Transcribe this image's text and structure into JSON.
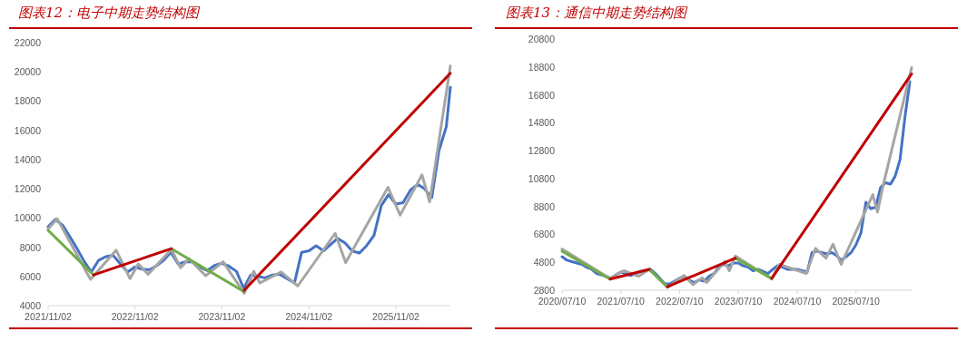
{
  "chart_data": [
    {
      "type": "line",
      "title": "图表12：电子中期走势结构图",
      "xlim": [
        "2021-11-02",
        "2026-06-19"
      ],
      "ylim": [
        4000,
        22000
      ],
      "xticks": [
        {
          "value": "2021-11-02",
          "label": "2021/11/02"
        },
        {
          "value": "2022-11-02",
          "label": "2022/11/02"
        },
        {
          "value": "2023-11-02",
          "label": "2023/11/02"
        },
        {
          "value": "2024-11-02",
          "label": "2024/11/02"
        },
        {
          "value": "2025-11-02",
          "label": "2025/11/02"
        }
      ],
      "yticks": [
        4000,
        6000,
        8000,
        10000,
        12000,
        14000,
        16000,
        18000,
        20000,
        22000
      ],
      "series": [
        {
          "color": "#4472c4",
          "x": [
            "2021-11-02",
            "2021-12-02",
            "2022-01-02",
            "2022-02-02",
            "2022-03-02",
            "2022-04-02",
            "2022-05-02",
            "2022-06-02",
            "2022-07-02",
            "2022-08-02",
            "2022-09-02",
            "2022-10-02",
            "2022-11-02",
            "2022-12-02",
            "2023-01-02",
            "2023-02-02",
            "2023-03-02",
            "2023-04-02",
            "2023-05-02",
            "2023-06-02",
            "2023-07-02",
            "2023-08-02",
            "2023-09-02",
            "2023-10-02",
            "2023-11-02",
            "2023-12-02",
            "2024-01-02",
            "2024-02-02",
            "2024-03-02",
            "2024-04-02",
            "2024-05-02",
            "2024-06-02",
            "2024-07-02",
            "2024-08-02",
            "2024-09-02",
            "2024-10-02",
            "2024-11-02",
            "2024-12-02",
            "2025-01-02",
            "2025-02-02",
            "2025-03-02",
            "2025-04-02",
            "2025-05-02",
            "2025-06-02",
            "2025-07-02",
            "2025-08-02",
            "2025-09-02",
            "2025-10-02",
            "2025-11-02",
            "2025-12-02",
            "2026-01-02",
            "2026-02-02",
            "2026-03-02",
            "2026-04-02",
            "2026-05-02",
            "2026-06-02",
            "2026-06-19"
          ],
          "values": [
            9400,
            9900,
            9500,
            8700,
            7950,
            7050,
            6300,
            7100,
            7350,
            7450,
            6850,
            6300,
            6650,
            6500,
            6450,
            6750,
            7100,
            7650,
            6850,
            7000,
            7000,
            6650,
            6400,
            6750,
            6900,
            6700,
            6350,
            5180,
            6100,
            6000,
            5900,
            6100,
            6150,
            5850,
            5550,
            7650,
            7750,
            8100,
            7750,
            8200,
            8600,
            8300,
            7750,
            7600,
            8100,
            8800,
            10850,
            11600,
            10950,
            11050,
            11900,
            12300,
            12000,
            11400,
            14600,
            16250,
            18950
          ]
        },
        {
          "color": "#a5a5a5",
          "x": [
            "2021-11-02",
            "2021-12-10",
            "2022-04-29",
            "2022-08-15",
            "2022-10-12",
            "2022-11-16",
            "2022-12-27",
            "2023-04-04",
            "2023-05-12",
            "2023-06-17",
            "2023-08-26",
            "2023-11-07",
            "2024-02-04",
            "2024-03-15",
            "2024-04-10",
            "2024-07-08",
            "2024-09-16",
            "2025-02-20",
            "2025-04-05",
            "2025-09-30",
            "2025-11-20",
            "2026-02-20",
            "2026-03-24",
            "2026-06-19"
          ],
          "values": [
            9250,
            9950,
            5800,
            7800,
            5850,
            6850,
            6150,
            7850,
            6600,
            7200,
            6050,
            7000,
            4850,
            6350,
            5550,
            6300,
            5350,
            8950,
            6950,
            12100,
            10200,
            12950,
            11100,
            20400
          ]
        },
        {
          "color": "#70ad47",
          "x": [
            "2021-11-02",
            "2022-05-12"
          ],
          "values": [
            9150,
            6100
          ]
        },
        {
          "color": "#70ad47",
          "x": [
            "2023-04-04",
            "2024-02-04"
          ],
          "values": [
            7900,
            4950
          ]
        },
        {
          "color": "#c00000",
          "x": [
            "2022-05-12",
            "2023-04-04"
          ],
          "values": [
            6100,
            7900
          ]
        },
        {
          "color": "#c00000",
          "x": [
            "2024-02-04",
            "2026-06-19"
          ],
          "values": [
            5050,
            19900
          ]
        }
      ]
    },
    {
      "type": "line",
      "title": "图表13：通信中期走势结构图",
      "xlim": [
        "2020-07-10",
        "2026-06-21"
      ],
      "ylim": [
        2800,
        20800
      ],
      "xticks": [
        {
          "value": "2020-07-10",
          "label": "2020/07/10"
        },
        {
          "value": "2021-07-10",
          "label": "2021/07/10"
        },
        {
          "value": "2022-07-10",
          "label": "2022/07/10"
        },
        {
          "value": "2023-07-10",
          "label": "2023/07/10"
        },
        {
          "value": "2024-07-10",
          "label": "2024/07/10"
        },
        {
          "value": "2025-07-10",
          "label": "2025/07/10"
        }
      ],
      "yticks": [
        2800,
        4800,
        6800,
        8800,
        10800,
        12800,
        14800,
        16800,
        18800,
        20800
      ],
      "series": [
        {
          "color": "#4472c4",
          "x": [
            "2020-07-10",
            "2020-08-10",
            "2020-09-10",
            "2020-10-10",
            "2020-11-10",
            "2020-12-10",
            "2021-01-10",
            "2021-02-10",
            "2021-03-10",
            "2021-04-10",
            "2021-05-10",
            "2021-06-10",
            "2021-07-10",
            "2021-08-10",
            "2021-09-10",
            "2021-10-10",
            "2021-11-10",
            "2021-12-10",
            "2022-01-10",
            "2022-02-10",
            "2022-03-10",
            "2022-04-10",
            "2022-05-10",
            "2022-06-10",
            "2022-07-10",
            "2022-08-10",
            "2022-09-10",
            "2022-10-10",
            "2022-11-10",
            "2022-12-10",
            "2023-01-10",
            "2023-02-10",
            "2023-03-10",
            "2023-04-10",
            "2023-05-10",
            "2023-06-10",
            "2023-07-10",
            "2023-08-10",
            "2023-09-10",
            "2023-10-10",
            "2023-11-10",
            "2023-12-10",
            "2024-01-10",
            "2024-02-10",
            "2024-03-10",
            "2024-04-10",
            "2024-05-10",
            "2024-06-10",
            "2024-07-10",
            "2024-08-10",
            "2024-09-10",
            "2024-10-10",
            "2024-11-10",
            "2024-12-10",
            "2025-01-10",
            "2025-02-10",
            "2025-03-10",
            "2025-04-10",
            "2025-05-10",
            "2025-06-10",
            "2025-07-10",
            "2025-08-10",
            "2025-09-10",
            "2025-10-10",
            "2025-11-10",
            "2025-12-10",
            "2026-01-10",
            "2026-02-10",
            "2026-03-10",
            "2026-04-10",
            "2026-05-10",
            "2026-06-10"
          ],
          "values": [
            5200,
            4950,
            4850,
            4750,
            4650,
            4450,
            4300,
            4000,
            3900,
            3800,
            3650,
            3900,
            4100,
            4000,
            3850,
            4000,
            4150,
            4200,
            4300,
            4000,
            3650,
            3250,
            3250,
            3450,
            3650,
            3800,
            3500,
            3350,
            3550,
            3450,
            3800,
            4000,
            4450,
            4650,
            4550,
            4750,
            4750,
            4550,
            4450,
            4200,
            4300,
            4150,
            4000,
            4300,
            4550,
            4450,
            4300,
            4300,
            4300,
            4200,
            4100,
            5500,
            5600,
            5500,
            5400,
            5500,
            5300,
            4950,
            5200,
            5500,
            6050,
            6900,
            9100,
            8650,
            8750,
            10150,
            10500,
            10400,
            10950,
            12150,
            15150,
            17750
          ]
        },
        {
          "color": "#a5a5a5",
          "x": [
            "2020-07-10",
            "2021-05-04",
            "2021-07-28",
            "2021-10-30",
            "2022-01-03",
            "2022-04-26",
            "2022-08-07",
            "2022-10-02",
            "2022-11-28",
            "2022-12-26",
            "2023-04-17",
            "2023-05-16",
            "2023-06-22",
            "2024-02-03",
            "2024-03-21",
            "2024-09-05",
            "2024-11-01",
            "2025-01-05",
            "2025-02-18",
            "2025-04-09",
            "2025-10-23",
            "2025-11-21",
            "2025-12-28",
            "2026-06-21"
          ],
          "values": [
            5750,
            3650,
            4200,
            3800,
            4300,
            3000,
            3850,
            3200,
            3700,
            3350,
            4850,
            4200,
            5250,
            3600,
            4650,
            4000,
            5800,
            5100,
            6100,
            4650,
            9650,
            8400,
            10400,
            18750
          ]
        },
        {
          "color": "#70ad47",
          "x": [
            "2020-07-10",
            "2021-05-04"
          ],
          "values": [
            5600,
            3600
          ]
        },
        {
          "color": "#70ad47",
          "x": [
            "2022-01-03",
            "2022-04-26"
          ],
          "values": [
            4300,
            3050
          ]
        },
        {
          "color": "#70ad47",
          "x": [
            "2023-06-22",
            "2024-02-03"
          ],
          "values": [
            5100,
            3650
          ]
        },
        {
          "color": "#c00000",
          "x": [
            "2021-05-04",
            "2022-01-03"
          ],
          "values": [
            3600,
            4300
          ]
        },
        {
          "color": "#c00000",
          "x": [
            "2022-04-26",
            "2023-06-22"
          ],
          "values": [
            3050,
            5100
          ]
        },
        {
          "color": "#c00000",
          "x": [
            "2024-02-03",
            "2026-06-21"
          ],
          "values": [
            3650,
            18300
          ]
        }
      ]
    }
  ]
}
